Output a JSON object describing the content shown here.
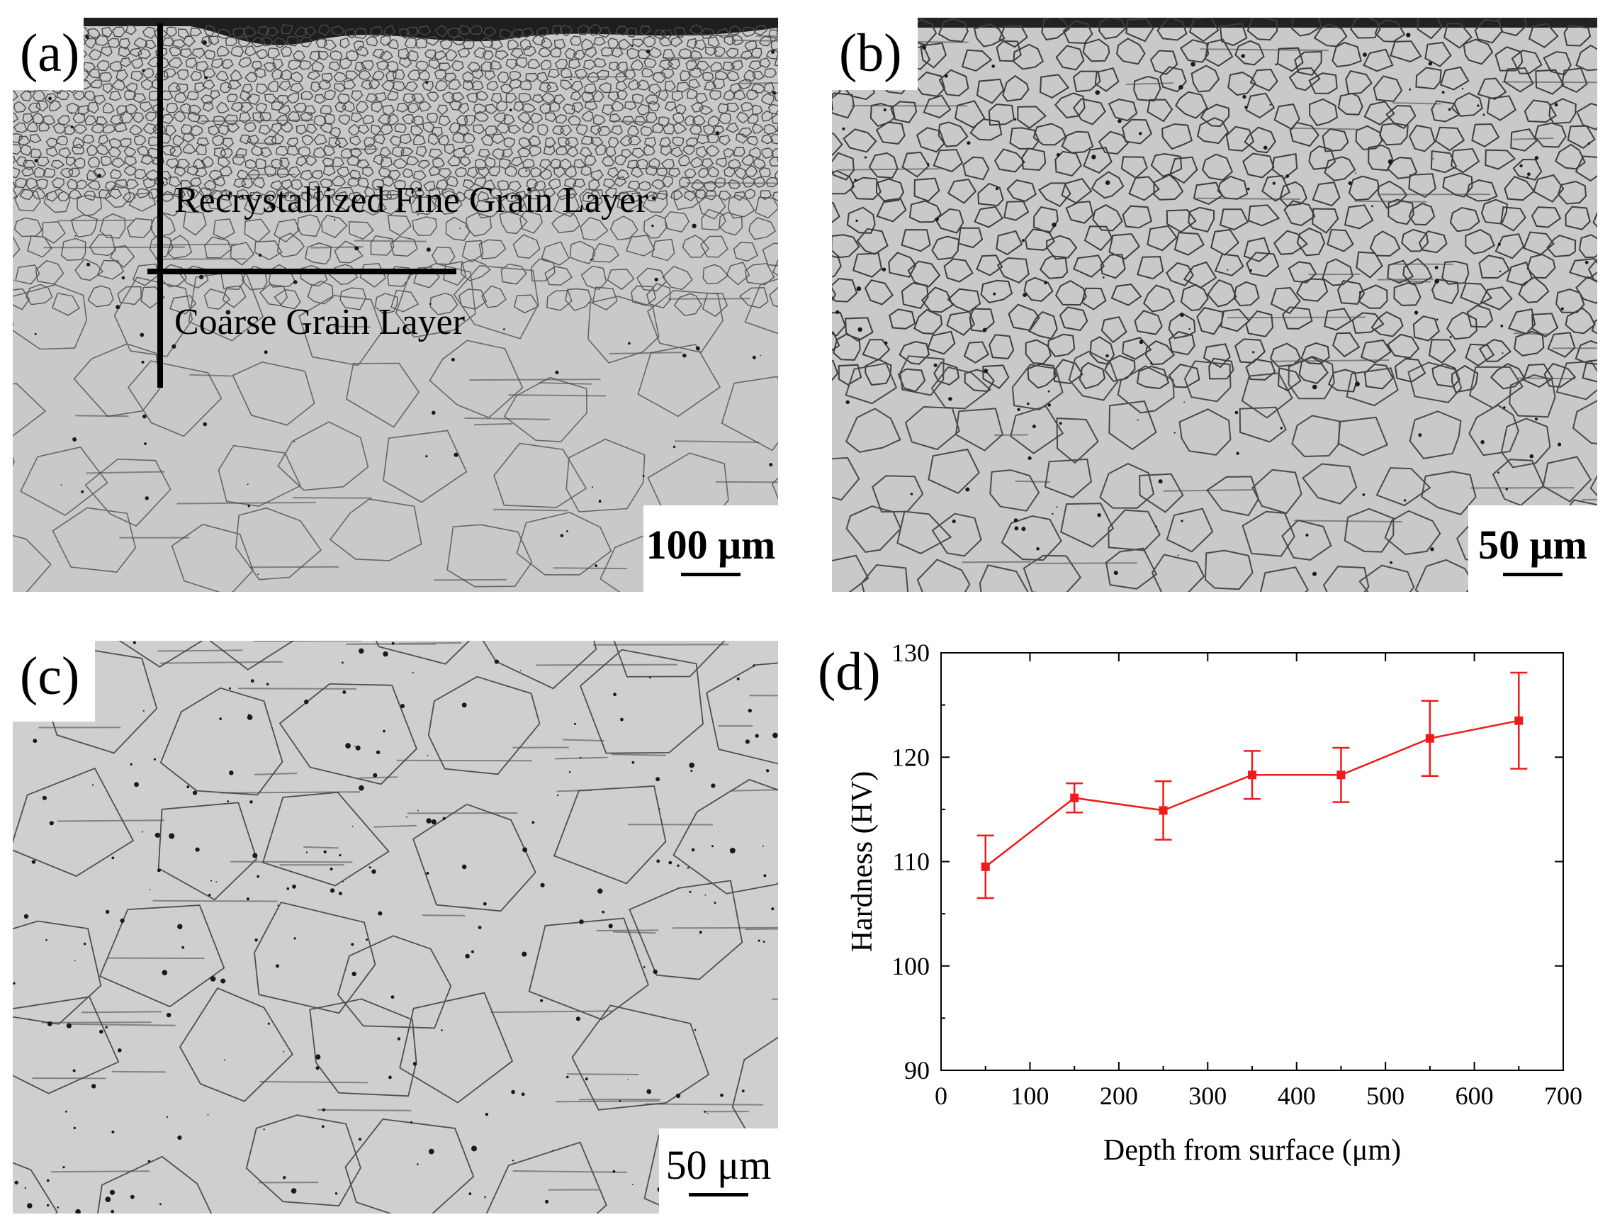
{
  "panels": {
    "a": {
      "label": "(a)",
      "annotation_fine": "Recrystallized Fine Grain Layer",
      "annotation_coarse": "Coarse Grain Layer",
      "scale": "100 μm"
    },
    "b": {
      "label": "(b)",
      "scale": "50 μm"
    },
    "c": {
      "label": "(c)",
      "scale": "50 μm"
    },
    "d": {
      "label": "(d)"
    }
  },
  "colors": {
    "series": "#ee1c1c",
    "micrograph_bg": "#c9c9c9",
    "grain_boundary": "#3a3a3a"
  },
  "chart_data": {
    "type": "line",
    "title": "",
    "xlabel": "Depth from surface (μm)",
    "ylabel": "Hardness (HV)",
    "xlim": [
      0,
      700
    ],
    "ylim": [
      90,
      130
    ],
    "xticks": [
      0,
      100,
      200,
      300,
      400,
      500,
      600,
      700
    ],
    "yticks": [
      90,
      100,
      110,
      120,
      130
    ],
    "grid": false,
    "marker": "square",
    "series": [
      {
        "x": [
          50,
          150,
          250,
          350,
          450,
          550,
          650
        ],
        "y": [
          109.5,
          116.1,
          114.9,
          118.3,
          118.3,
          121.8,
          123.5
        ],
        "err": [
          3.0,
          1.4,
          2.8,
          2.3,
          2.6,
          3.6,
          4.6
        ]
      }
    ]
  }
}
